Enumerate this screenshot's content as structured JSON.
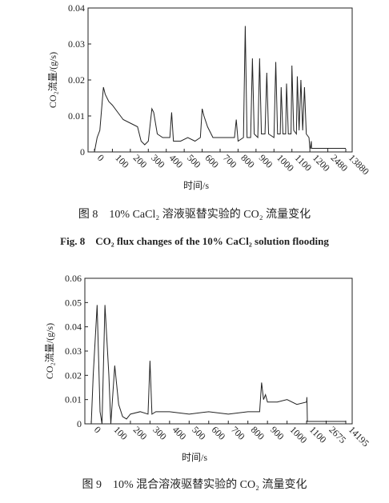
{
  "chart_data": [
    {
      "type": "line",
      "ylabel": "CO₂流量/(g/s)",
      "xlabel": "时间/s",
      "caption": "图 8　10% CaCl₂ 溶液驱替实验的 CO₂ 流量变化",
      "caption_en": "Fig. 8　CO₂ flux changes of the 10% CaCl₂ solution flooding",
      "xlim": [
        0,
        13880
      ],
      "xticks": [
        0,
        100,
        200,
        300,
        400,
        500,
        600,
        700,
        800,
        900,
        1000,
        1100,
        1200,
        2480,
        13880
      ],
      "ylim": [
        0,
        0.04
      ],
      "yticks": [
        0,
        0.01,
        0.02,
        0.03,
        0.04
      ],
      "series": [
        {
          "color": "#222222",
          "x": [
            0,
            15,
            30,
            50,
            60,
            80,
            100,
            130,
            160,
            200,
            240,
            260,
            280,
            300,
            320,
            330,
            350,
            380,
            420,
            430,
            440,
            480,
            520,
            560,
            590,
            600,
            610,
            630,
            660,
            700,
            750,
            780,
            790,
            800,
            830,
            840,
            850,
            870,
            880,
            890,
            910,
            920,
            930,
            950,
            960,
            970,
            1000,
            1010,
            1020,
            1035,
            1040,
            1050,
            1065,
            1070,
            1080,
            1095,
            1100,
            1110,
            1125,
            1130,
            1140,
            1150,
            1160,
            1170,
            1180,
            1195,
            1200,
            1240,
            1300,
            1320,
            1400,
            2480,
            5000,
            13880
          ],
          "values": [
            0,
            0.004,
            0.006,
            0.018,
            0.016,
            0.014,
            0.013,
            0.011,
            0.009,
            0.008,
            0.007,
            0.003,
            0.002,
            0.003,
            0.012,
            0.011,
            0.005,
            0.004,
            0.004,
            0.011,
            0.003,
            0.003,
            0.004,
            0.003,
            0.004,
            0.012,
            0.01,
            0.007,
            0.004,
            0.004,
            0.004,
            0.004,
            0.009,
            0.003,
            0.004,
            0.035,
            0.004,
            0.004,
            0.026,
            0.005,
            0.004,
            0.026,
            0.005,
            0.005,
            0.022,
            0.005,
            0.004,
            0.025,
            0.005,
            0.005,
            0.018,
            0.005,
            0.005,
            0.019,
            0.005,
            0.005,
            0.024,
            0.006,
            0.005,
            0.021,
            0.006,
            0.02,
            0.006,
            0.018,
            0.005,
            0.004,
            0.001,
            0.001,
            0.003,
            0.001,
            0.001,
            0.001,
            0.001,
            0.001
          ]
        }
      ]
    },
    {
      "type": "line",
      "ylabel": "CO₂流量/(g/s)",
      "xlabel": "时间/s",
      "caption": "图 9　10% 混合溶液驱替实验的 CO₂ 流量变化",
      "xlim": [
        0,
        14195
      ],
      "xticks": [
        0,
        100,
        200,
        300,
        400,
        500,
        600,
        700,
        800,
        900,
        1000,
        1100,
        2675,
        14195
      ],
      "ylim": [
        0,
        0.06
      ],
      "yticks": [
        0,
        0.01,
        0.02,
        0.03,
        0.04,
        0.05,
        0.06
      ],
      "series": [
        {
          "color": "#222222",
          "x": [
            0,
            10,
            30,
            45,
            55,
            70,
            90,
            100,
            110,
            120,
            140,
            160,
            180,
            200,
            250,
            290,
            300,
            310,
            330,
            400,
            500,
            600,
            700,
            800,
            860,
            870,
            880,
            890,
            900,
            950,
            1000,
            1050,
            1100,
            1120,
            1140,
            1160,
            1180,
            1200,
            2675,
            14195
          ],
          "values": [
            0,
            0.02,
            0.049,
            0.005,
            0,
            0.049,
            0.02,
            0,
            0.012,
            0.024,
            0.008,
            0.003,
            0.002,
            0.004,
            0.005,
            0.004,
            0.026,
            0.004,
            0.005,
            0.005,
            0.004,
            0.005,
            0.004,
            0.005,
            0.005,
            0.017,
            0.01,
            0.012,
            0.009,
            0.009,
            0.01,
            0.008,
            0.009,
            0.011,
            0.007,
            0.001,
            0.001,
            0.001,
            0.001,
            0.001
          ]
        }
      ]
    }
  ]
}
